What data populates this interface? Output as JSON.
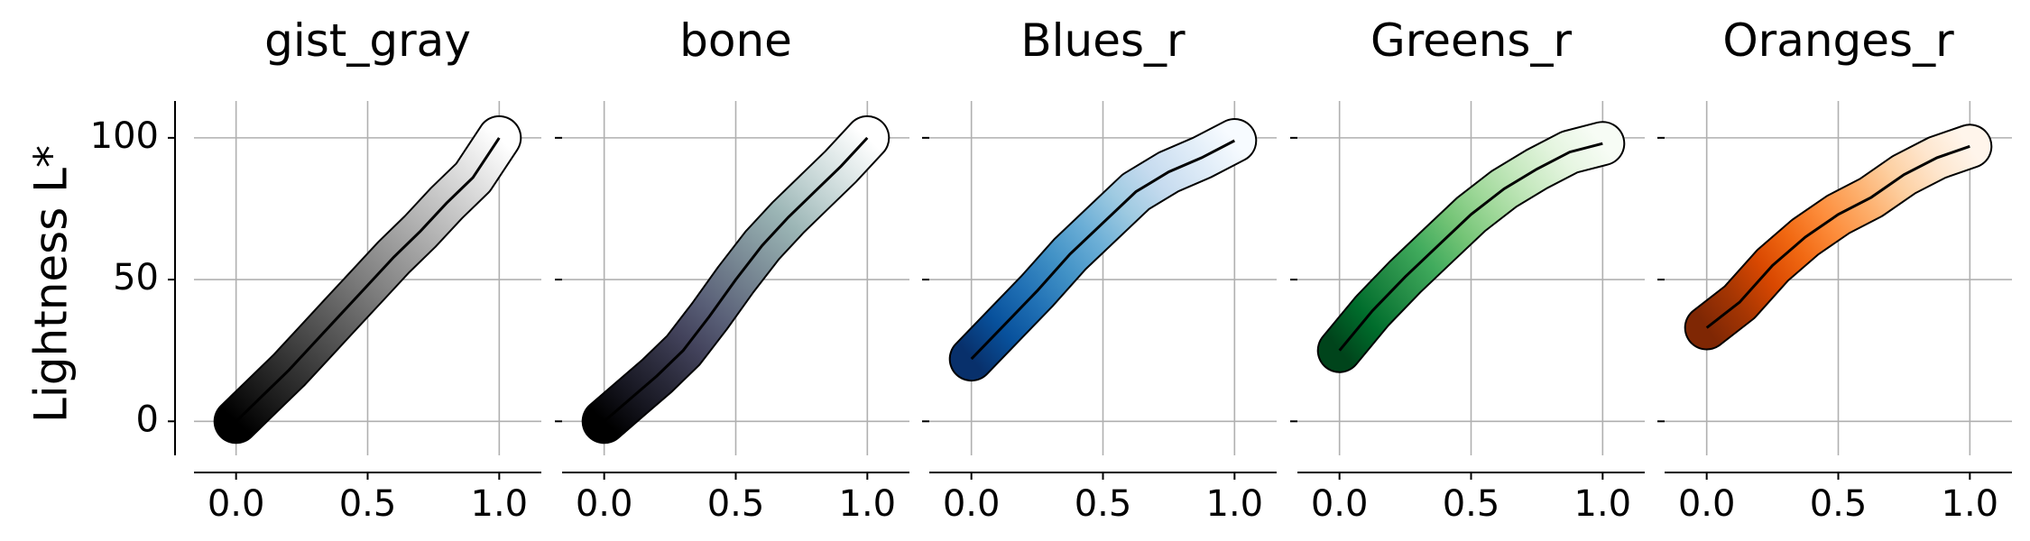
{
  "chart_data": {
    "type": "line",
    "ylabel": "Lightness L*",
    "xticks": [
      "0.0",
      "0.5",
      "1.0"
    ],
    "yticks": [
      "0",
      "50",
      "100"
    ],
    "xlim": [
      -0.16,
      1.16
    ],
    "ylim": [
      -12,
      113
    ],
    "grid": true,
    "panels": [
      {
        "title": "gist_gray",
        "x": [
          0.0,
          0.1,
          0.2,
          0.3,
          0.4,
          0.5,
          0.6,
          0.7,
          0.8,
          0.9,
          1.0
        ],
        "values": [
          0,
          9,
          18,
          28,
          38,
          48,
          58,
          67,
          77,
          86,
          100
        ],
        "colors": [
          "#000000",
          "#1a1a1a",
          "#333333",
          "#4d4d4d",
          "#666666",
          "#808080",
          "#999999",
          "#b3b3b3",
          "#cccccc",
          "#e6e6e6",
          "#ffffff"
        ]
      },
      {
        "title": "bone",
        "x": [
          0.0,
          0.1,
          0.2,
          0.3,
          0.4,
          0.5,
          0.6,
          0.7,
          0.8,
          0.9,
          1.0
        ],
        "values": [
          0,
          8,
          16,
          25,
          37,
          50,
          62,
          72,
          81,
          90,
          100
        ],
        "colors": [
          "#000000",
          "#161620",
          "#2c2c3d",
          "#43435c",
          "#595f77",
          "#6f7c8b",
          "#8599a0",
          "#9bb5b5",
          "#bed0d0",
          "#dfe8e8",
          "#ffffff"
        ]
      },
      {
        "title": "Blues_r",
        "x": [
          0.0,
          0.125,
          0.25,
          0.375,
          0.5,
          0.625,
          0.75,
          0.875,
          1.0
        ],
        "values": [
          22,
          34,
          46,
          59,
          70,
          81,
          88,
          93,
          99
        ],
        "colors": [
          "#08306b",
          "#08519c",
          "#2171b5",
          "#4292c6",
          "#6baed6",
          "#9ecae1",
          "#c6dbef",
          "#deebf7",
          "#f7fbff"
        ]
      },
      {
        "title": "Greens_r",
        "x": [
          0.0,
          0.125,
          0.25,
          0.375,
          0.5,
          0.625,
          0.75,
          0.875,
          1.0
        ],
        "values": [
          25,
          39,
          51,
          62,
          73,
          82,
          89,
          95,
          98
        ],
        "colors": [
          "#00441b",
          "#006d2c",
          "#238b45",
          "#41ab5d",
          "#74c476",
          "#a1d99b",
          "#c7e9c0",
          "#e5f5e0",
          "#f7fcf5"
        ]
      },
      {
        "title": "Oranges_r",
        "x": [
          0.0,
          0.125,
          0.25,
          0.375,
          0.5,
          0.625,
          0.75,
          0.875,
          1.0
        ],
        "values": [
          33,
          42,
          55,
          65,
          73,
          79,
          87,
          93,
          97
        ],
        "colors": [
          "#7f2704",
          "#a63603",
          "#d94801",
          "#f16913",
          "#fd8d3c",
          "#fdae6b",
          "#fdd0a2",
          "#fee6ce",
          "#fff5eb"
        ]
      }
    ]
  }
}
